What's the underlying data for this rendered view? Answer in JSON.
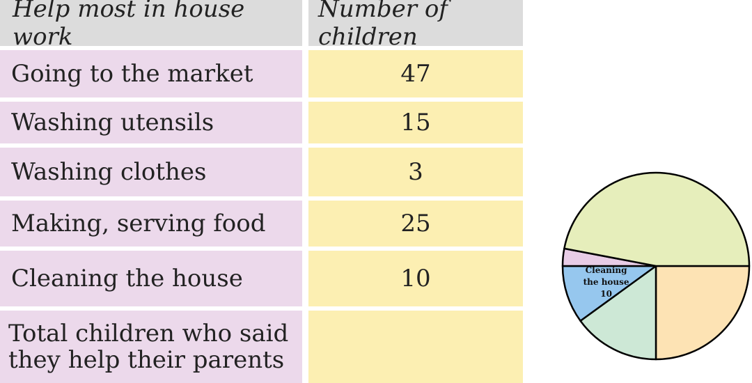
{
  "table": {
    "header": {
      "activity": "Help most in house work",
      "count": "Number of children"
    },
    "rows": [
      {
        "activity": "Going to the market",
        "count": "47"
      },
      {
        "activity": "Washing utensils",
        "count": "15"
      },
      {
        "activity": "Washing clothes",
        "count": "3"
      },
      {
        "activity": "Making, serving food",
        "count": "25"
      },
      {
        "activity": "Cleaning the house",
        "count": "10"
      }
    ],
    "total": {
      "label": "Total children who said\nthey help their parents",
      "value": ""
    }
  },
  "colors": {
    "header_bg": "#dcdcdc",
    "label_bg": "#ecd9eb",
    "value_bg": "#fcefb2"
  },
  "chart_data": {
    "type": "pie",
    "title": "",
    "categories": [
      "Making, serving food",
      "Washing utensils",
      "Cleaning the house",
      "Washing clothes",
      "Going to the market"
    ],
    "values": [
      25,
      15,
      10,
      3,
      47
    ],
    "colors": [
      "#fde3b4",
      "#cde8d6",
      "#96c7ee",
      "#e8cce6",
      "#e6eebb"
    ],
    "start_angle_deg": 0,
    "direction": "clockwise",
    "slice_labels": [
      {
        "category": "Cleaning the house",
        "lines": [
          "Cleaning",
          "the house",
          "10"
        ]
      }
    ]
  }
}
